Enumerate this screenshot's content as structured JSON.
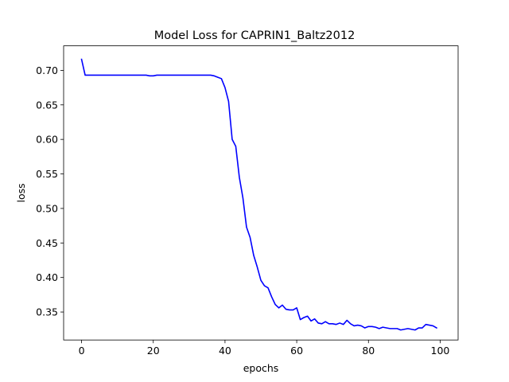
{
  "chart_data": {
    "type": "line",
    "title": "Model Loss for CAPRIN1_Baltz2012",
    "xlabel": "epochs",
    "ylabel": "loss",
    "xlim": [
      -5,
      105
    ],
    "ylim": [
      0.3095,
      0.7355
    ],
    "x_ticks": [
      0,
      20,
      40,
      60,
      80,
      100
    ],
    "y_ticks": [
      0.35,
      0.4,
      0.45,
      0.5,
      0.55,
      0.6,
      0.65,
      0.7
    ],
    "grid": false,
    "legend": "none",
    "series": [
      {
        "color": "#0000ff",
        "x": [
          0,
          1,
          2,
          3,
          4,
          5,
          6,
          7,
          8,
          9,
          10,
          11,
          12,
          13,
          14,
          15,
          16,
          17,
          18,
          19,
          20,
          21,
          22,
          23,
          24,
          25,
          26,
          27,
          28,
          29,
          30,
          31,
          32,
          33,
          34,
          35,
          36,
          37,
          38,
          39,
          40,
          41,
          42,
          43,
          44,
          45,
          46,
          47,
          48,
          49,
          50,
          51,
          52,
          53,
          54,
          55,
          56,
          57,
          58,
          59,
          60,
          61,
          62,
          63,
          64,
          65,
          66,
          67,
          68,
          69,
          70,
          71,
          72,
          73,
          74,
          75,
          76,
          77,
          78,
          79,
          80,
          81,
          82,
          83,
          84,
          85,
          86,
          87,
          88,
          89,
          90,
          91,
          92,
          93,
          94,
          95,
          96,
          97,
          98,
          99
        ],
        "y": [
          0.716,
          0.693,
          0.693,
          0.693,
          0.693,
          0.693,
          0.693,
          0.693,
          0.693,
          0.693,
          0.693,
          0.693,
          0.693,
          0.693,
          0.693,
          0.693,
          0.693,
          0.693,
          0.693,
          0.692,
          0.692,
          0.693,
          0.693,
          0.693,
          0.693,
          0.693,
          0.693,
          0.693,
          0.693,
          0.693,
          0.693,
          0.693,
          0.693,
          0.693,
          0.693,
          0.693,
          0.693,
          0.692,
          0.69,
          0.688,
          0.675,
          0.655,
          0.6,
          0.59,
          0.545,
          0.515,
          0.473,
          0.458,
          0.432,
          0.415,
          0.396,
          0.388,
          0.385,
          0.372,
          0.361,
          0.356,
          0.36,
          0.354,
          0.353,
          0.353,
          0.356,
          0.339,
          0.342,
          0.344,
          0.337,
          0.34,
          0.334,
          0.333,
          0.336,
          0.333,
          0.333,
          0.332,
          0.334,
          0.332,
          0.338,
          0.333,
          0.33,
          0.331,
          0.33,
          0.327,
          0.329,
          0.329,
          0.328,
          0.326,
          0.328,
          0.327,
          0.326,
          0.326,
          0.326,
          0.324,
          0.325,
          0.326,
          0.325,
          0.324,
          0.327,
          0.327,
          0.332,
          0.331,
          0.33,
          0.327
        ]
      }
    ]
  }
}
